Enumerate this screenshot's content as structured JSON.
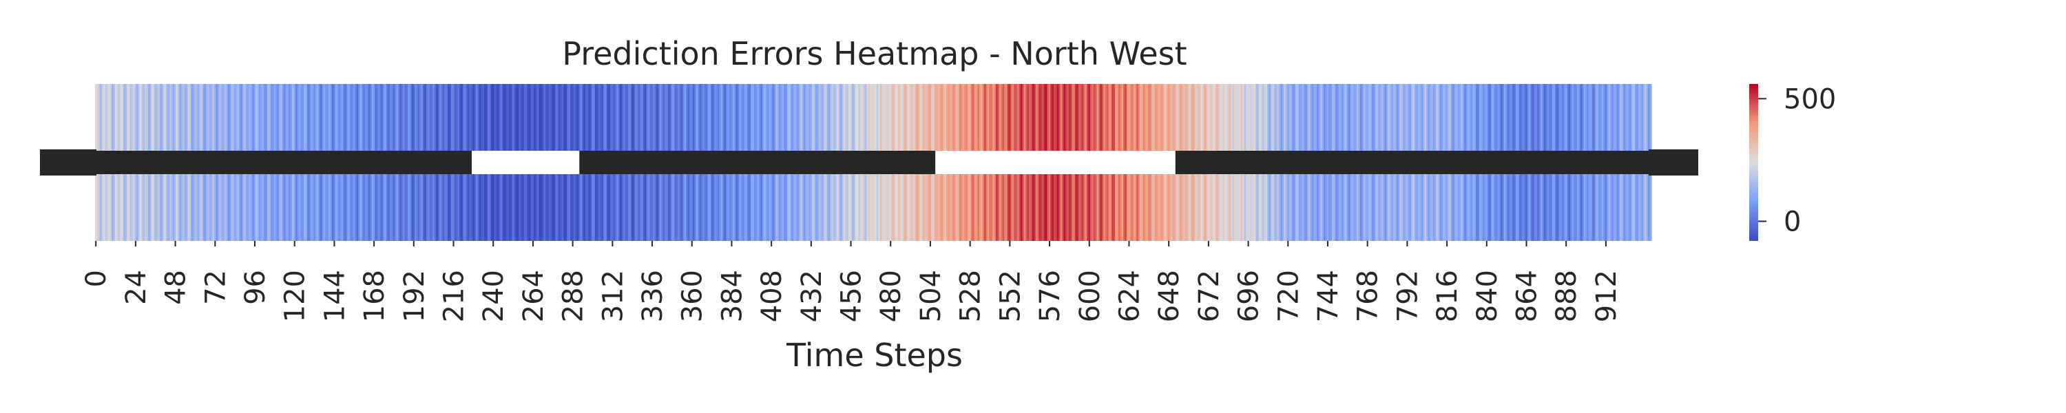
{
  "chart_data": {
    "type": "heatmap",
    "title": "Prediction Errors Heatmap - North West",
    "xlabel": "Time Steps",
    "ylabel": "",
    "colormap": "coolwarm",
    "colorbar": {
      "range": [
        -80,
        560
      ],
      "ticks": [
        0,
        500
      ]
    },
    "x_ticks": [
      0,
      24,
      48,
      72,
      96,
      120,
      144,
      168,
      192,
      216,
      240,
      264,
      288,
      312,
      336,
      360,
      384,
      408,
      432,
      456,
      480,
      504,
      528,
      552,
      576,
      600,
      624,
      648,
      672,
      696,
      720,
      744,
      768,
      792,
      816,
      840,
      864,
      888,
      912
    ],
    "n_steps": 940,
    "profile_x": [
      0,
      24,
      48,
      72,
      96,
      120,
      144,
      168,
      192,
      216,
      240,
      264,
      288,
      312,
      336,
      360,
      384,
      408,
      432,
      456,
      480,
      504,
      528,
      552,
      576,
      600,
      624,
      648,
      672,
      696,
      720,
      744,
      768,
      792,
      816,
      840,
      864,
      888,
      912,
      939
    ],
    "profile_values": [
      210,
      185,
      160,
      130,
      105,
      80,
      60,
      35,
      10,
      -20,
      -50,
      -60,
      -40,
      -20,
      0,
      20,
      45,
      80,
      130,
      200,
      270,
      330,
      400,
      460,
      500,
      470,
      420,
      350,
      290,
      230,
      120,
      90,
      110,
      130,
      120,
      60,
      20,
      40,
      80,
      120
    ]
  }
}
